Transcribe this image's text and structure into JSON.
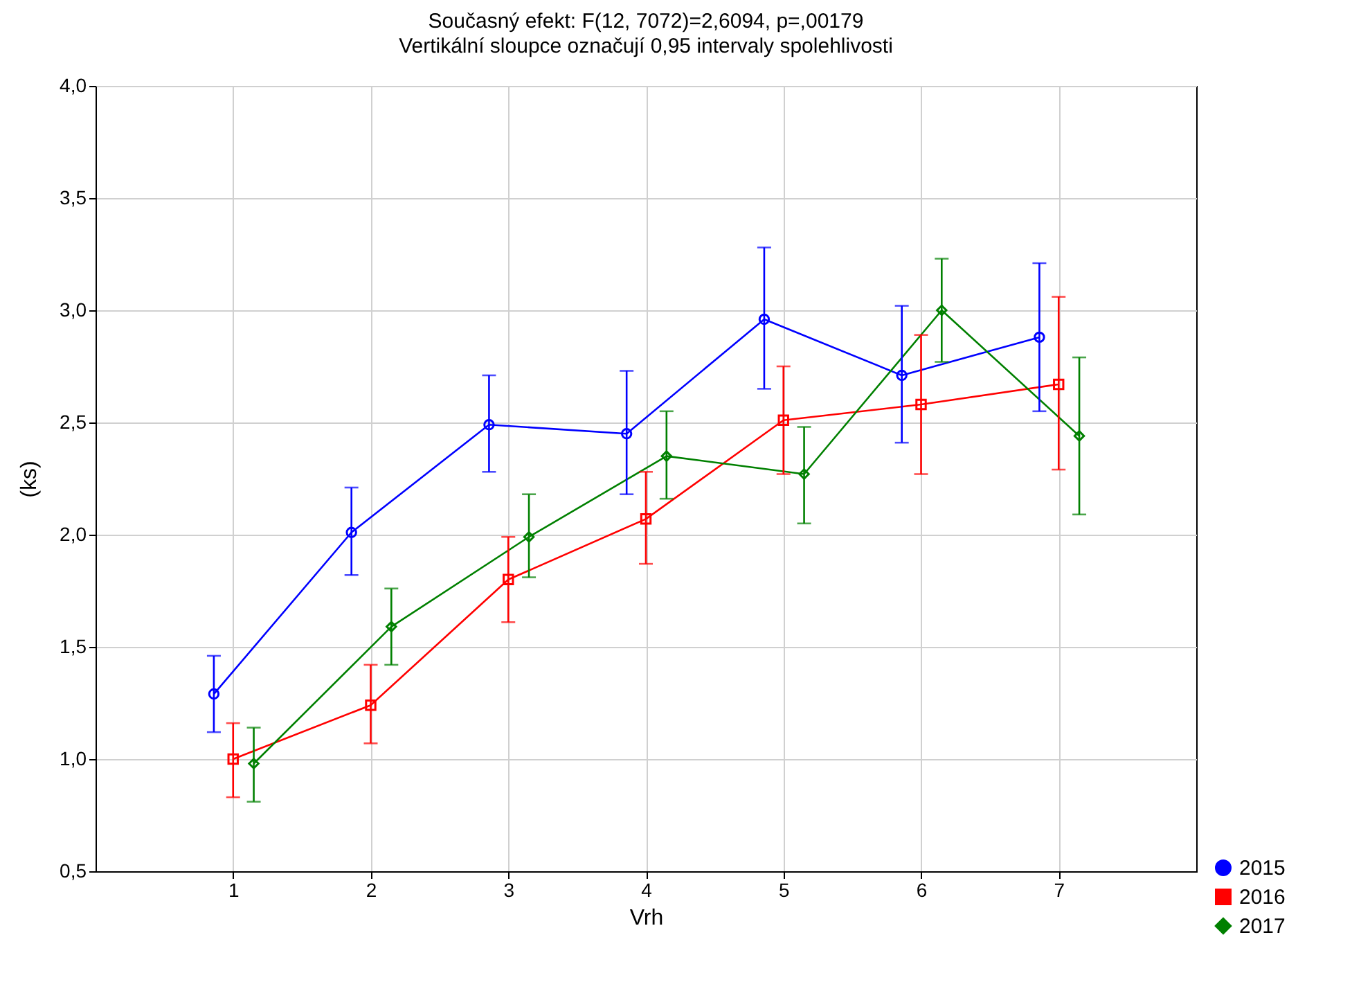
{
  "chart_data": {
    "type": "line",
    "title": "Současný efekt: F(12, 7072)=2,6094, p=,00179",
    "subtitle": "Vertikální sloupce označují 0,95 intervaly spolehlivosti",
    "xlabel": "Vrh",
    "ylabel": "(ks)",
    "xlim": [
      0,
      8
    ],
    "xticks": [
      1,
      2,
      3,
      4,
      5,
      6,
      7
    ],
    "ylim": [
      0.5,
      4.0
    ],
    "yticks": [
      {
        "value": 0.5,
        "label": "0,5"
      },
      {
        "value": 1.0,
        "label": "1,0"
      },
      {
        "value": 1.5,
        "label": "1,5"
      },
      {
        "value": 2.0,
        "label": "2,0"
      },
      {
        "value": 2.5,
        "label": "2,5"
      },
      {
        "value": 3.0,
        "label": "3,0"
      },
      {
        "value": 3.5,
        "label": "3,5"
      },
      {
        "value": 4.0,
        "label": "4,0"
      }
    ],
    "grid": true,
    "legend": "bottom right",
    "line_style": "solid",
    "series": [
      {
        "name": "2015",
        "color": "#0000ff",
        "marker": "circle",
        "x": [
          0.86,
          1.86,
          2.86,
          3.86,
          4.86,
          5.86,
          6.86
        ],
        "values": [
          1.29,
          2.01,
          2.49,
          2.45,
          2.96,
          2.71,
          2.88
        ],
        "errors": [
          [
            1.12,
            1.46
          ],
          [
            1.82,
            2.21
          ],
          [
            2.28,
            2.71
          ],
          [
            2.18,
            2.73
          ],
          [
            2.65,
            3.28
          ],
          [
            2.41,
            3.02
          ],
          [
            2.55,
            3.21
          ]
        ]
      },
      {
        "name": "2016",
        "color": "#ff0000",
        "marker": "square",
        "x": [
          1,
          2,
          3,
          4,
          5,
          6,
          7
        ],
        "values": [
          1.0,
          1.24,
          1.8,
          2.07,
          2.51,
          2.58,
          2.67
        ],
        "errors": [
          [
            0.83,
            1.16
          ],
          [
            1.07,
            1.42
          ],
          [
            1.61,
            1.99
          ],
          [
            1.87,
            2.28
          ],
          [
            2.27,
            2.75
          ],
          [
            2.27,
            2.89
          ],
          [
            2.29,
            3.06
          ]
        ]
      },
      {
        "name": "2017",
        "color": "#008000",
        "marker": "diamond",
        "x": [
          1.15,
          2.15,
          3.15,
          4.15,
          5.15,
          6.15,
          7.15
        ],
        "values": [
          0.98,
          1.59,
          1.99,
          2.35,
          2.27,
          3.0,
          2.44
        ],
        "errors": [
          [
            0.81,
            1.14
          ],
          [
            1.42,
            1.76
          ],
          [
            1.81,
            2.18
          ],
          [
            2.16,
            2.55
          ],
          [
            2.05,
            2.48
          ],
          [
            2.77,
            3.23
          ],
          [
            2.09,
            2.79
          ]
        ]
      }
    ]
  }
}
